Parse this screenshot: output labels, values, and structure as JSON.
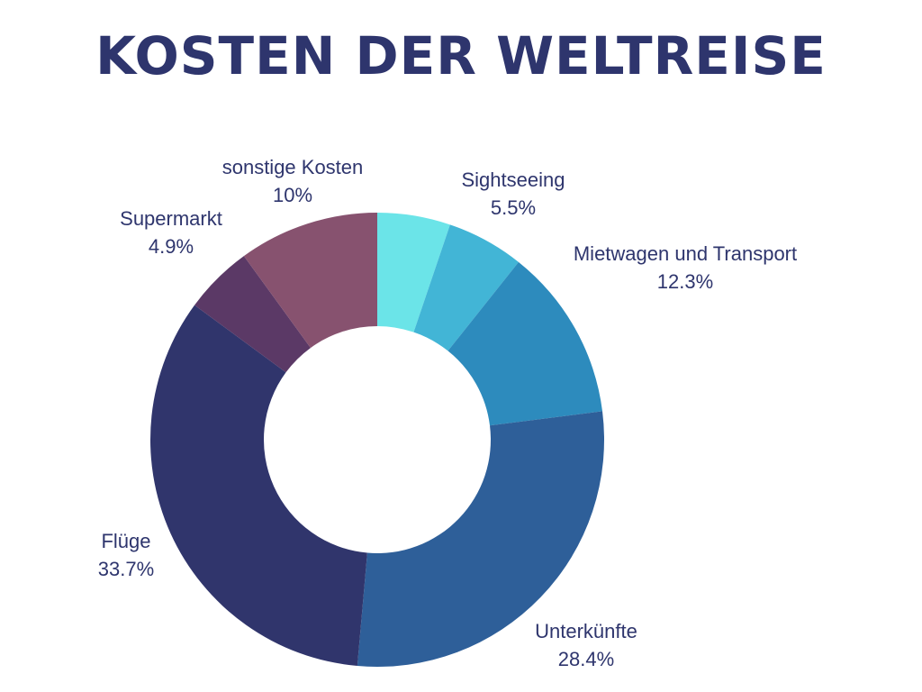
{
  "chart_data": {
    "type": "pie",
    "donut": true,
    "title": "KOSTEN DER WELTREISE",
    "categories": [
      "Sightseeing",
      "Mietwagen und Transport",
      "Unterkünfte",
      "Flüge",
      "Supermarkt",
      "sonstige Kosten"
    ],
    "values": [
      5.5,
      12.3,
      28.4,
      33.7,
      4.9,
      10
    ],
    "display_values": [
      "5.5%",
      "12.3%",
      "28.4%",
      "33.7%",
      "4.9%",
      "10%"
    ],
    "lead_value": 5.2,
    "lead_color": "#6be4e8",
    "colors": [
      "#42b5d6",
      "#2d8bbd",
      "#2e5f99",
      "#30356c",
      "#5b3966",
      "#87526f"
    ],
    "unit": "%",
    "legend": "none",
    "labels_outside": true
  }
}
